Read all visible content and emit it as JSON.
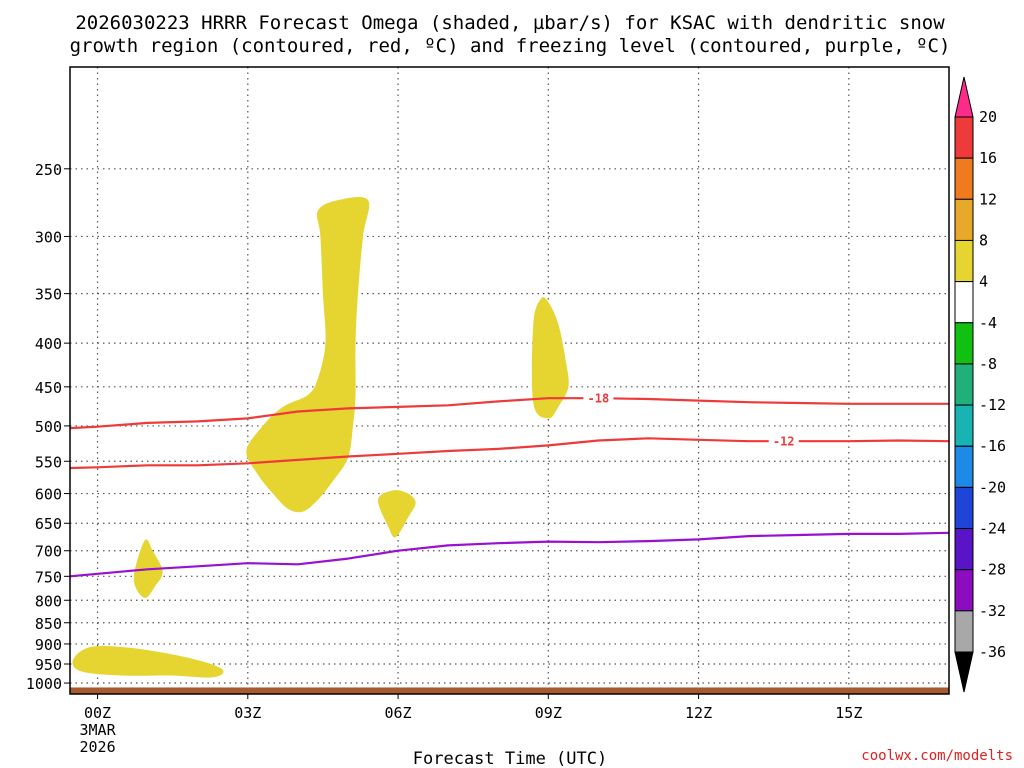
{
  "chart_data": {
    "type": "time-height cross section",
    "title_lines": [
      "2026030223 HRRR Forecast Omega (shaded, µbar/s) for KSAC with dendritic snow",
      "growth region (contoured, red, ºC) and freezing level (contoured, purple, ºC)"
    ],
    "xlabel": "Forecast Time (UTC)",
    "credit": "coolwx.com/modelts",
    "x_ticks": [
      {
        "hour": 0,
        "lines": [
          "00Z",
          "3MAR",
          "2026"
        ]
      },
      {
        "hour": 3,
        "lines": [
          "03Z"
        ]
      },
      {
        "hour": 6,
        "lines": [
          "06Z"
        ]
      },
      {
        "hour": 9,
        "lines": [
          "09Z"
        ]
      },
      {
        "hour": 12,
        "lines": [
          "12Z"
        ]
      },
      {
        "hour": 15,
        "lines": [
          "15Z"
        ]
      }
    ],
    "x_range_hours": [
      -0.55,
      17
    ],
    "y_axis": {
      "scale": "log-pressure",
      "range_hpa": [
        1030,
        190
      ],
      "inverted": true
    },
    "y_ticks": [
      250,
      300,
      350,
      400,
      450,
      500,
      550,
      600,
      650,
      700,
      750,
      800,
      850,
      900,
      950,
      1000
    ],
    "colorbar": {
      "labels": [
        "20",
        "16",
        "12",
        "8",
        "4",
        "-4",
        "-8",
        "-12",
        "-16",
        "-20",
        "-24",
        "-28",
        "-32",
        "-36"
      ],
      "colors": [
        "#ff2b8b",
        "#ee3a3a",
        "#f07a1e",
        "#e8a82a",
        "#e6d430",
        "#ffffff",
        "#12c012",
        "#22b07a",
        "#1ab3b3",
        "#1e8ae8",
        "#1e44d8",
        "#5a14c8",
        "#8c0cc0",
        "#a8a8a8",
        "#000000"
      ]
    },
    "omega_shaded_regions": [
      {
        "band": "4 to 8",
        "points": [
          [
            2.97,
            535
          ],
          [
            3.3,
            500
          ],
          [
            3.7,
            475
          ],
          [
            4.2,
            460
          ],
          [
            4.4,
            440
          ],
          [
            4.55,
            400
          ],
          [
            4.5,
            350
          ],
          [
            4.45,
            300
          ],
          [
            4.4,
            280
          ],
          [
            4.8,
            272
          ],
          [
            5.4,
            272
          ],
          [
            5.3,
            300
          ],
          [
            5.2,
            350
          ],
          [
            5.15,
            400
          ],
          [
            5.15,
            460
          ],
          [
            5.1,
            500
          ],
          [
            5.0,
            545
          ],
          [
            4.7,
            580
          ],
          [
            4.4,
            610
          ],
          [
            4.1,
            630
          ],
          [
            3.8,
            625
          ],
          [
            3.5,
            600
          ],
          [
            3.2,
            570
          ]
        ]
      },
      {
        "band": "4 to 8",
        "points": [
          [
            8.7,
            380
          ],
          [
            8.85,
            355
          ],
          [
            9.0,
            358
          ],
          [
            9.2,
            380
          ],
          [
            9.35,
            420
          ],
          [
            9.4,
            450
          ],
          [
            9.2,
            475
          ],
          [
            9.0,
            490
          ],
          [
            8.7,
            470
          ]
        ]
      },
      {
        "band": "4 to 8",
        "points": [
          [
            5.6,
            610
          ],
          [
            5.9,
            595
          ],
          [
            6.2,
            600
          ],
          [
            6.35,
            615
          ],
          [
            6.2,
            640
          ],
          [
            5.95,
            675
          ],
          [
            5.8,
            655
          ]
        ]
      },
      {
        "band": "4 to 8",
        "points": [
          [
            0.75,
            735
          ],
          [
            0.95,
            680
          ],
          [
            1.1,
            700
          ],
          [
            1.3,
            740
          ],
          [
            1.15,
            770
          ],
          [
            0.95,
            795
          ],
          [
            0.75,
            770
          ]
        ]
      },
      {
        "band": "4 to 8",
        "points": [
          [
            -0.5,
            945
          ],
          [
            -0.3,
            915
          ],
          [
            0.1,
            905
          ],
          [
            1.0,
            915
          ],
          [
            2.0,
            940
          ],
          [
            2.5,
            965
          ],
          [
            2.3,
            985
          ],
          [
            1.5,
            980
          ],
          [
            0.5,
            980
          ],
          [
            -0.3,
            970
          ]
        ]
      }
    ],
    "contours": [
      {
        "label": "-18",
        "color": "#ee3a3a",
        "label_at_hour": 10.0,
        "points": [
          [
            -0.55,
            503
          ],
          [
            0,
            501
          ],
          [
            1,
            496
          ],
          [
            2,
            494
          ],
          [
            3,
            490
          ],
          [
            4,
            481
          ],
          [
            5,
            477
          ],
          [
            6,
            475
          ],
          [
            7,
            473
          ],
          [
            8,
            468
          ],
          [
            9,
            464
          ],
          [
            10,
            464
          ],
          [
            11,
            465
          ],
          [
            12,
            467
          ],
          [
            13,
            469
          ],
          [
            14,
            470
          ],
          [
            15,
            471
          ],
          [
            16,
            471
          ],
          [
            17,
            471
          ]
        ]
      },
      {
        "label": "-12",
        "color": "#ee3a3a",
        "label_at_hour": 13.7,
        "points": [
          [
            -0.55,
            560
          ],
          [
            0,
            559
          ],
          [
            1,
            556
          ],
          [
            2,
            556
          ],
          [
            3,
            553
          ],
          [
            4,
            548
          ],
          [
            5,
            543
          ],
          [
            6,
            539
          ],
          [
            7,
            535
          ],
          [
            8,
            532
          ],
          [
            9,
            527
          ],
          [
            10,
            520
          ],
          [
            11,
            517
          ],
          [
            12,
            519
          ],
          [
            13,
            521
          ],
          [
            14,
            521
          ],
          [
            15,
            521
          ],
          [
            16,
            520
          ],
          [
            17,
            521
          ]
        ]
      },
      {
        "label": "",
        "color": "#9a10d0",
        "label_at_hour": null,
        "points": [
          [
            -0.55,
            750
          ],
          [
            0,
            745
          ],
          [
            1,
            736
          ],
          [
            2,
            730
          ],
          [
            3,
            724
          ],
          [
            4,
            726
          ],
          [
            5,
            715
          ],
          [
            6,
            700
          ],
          [
            7,
            690
          ],
          [
            8,
            686
          ],
          [
            9,
            683
          ],
          [
            10,
            684
          ],
          [
            11,
            682
          ],
          [
            12,
            679
          ],
          [
            13,
            673
          ],
          [
            14,
            671
          ],
          [
            15,
            669
          ],
          [
            16,
            669
          ],
          [
            17,
            667
          ]
        ]
      }
    ],
    "terrain": {
      "color": "#a65a2e",
      "top_hpa": 1012
    }
  }
}
